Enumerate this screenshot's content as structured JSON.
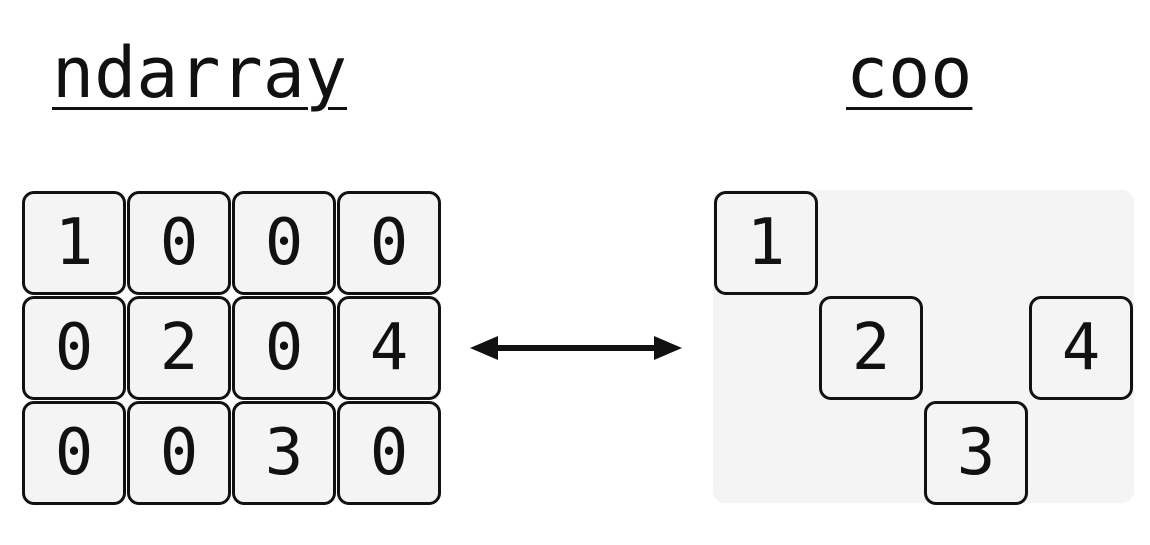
{
  "ndarray": {
    "title": "ndarray",
    "rows": [
      [
        "1",
        "0",
        "0",
        "0"
      ],
      [
        "0",
        "2",
        "0",
        "4"
      ],
      [
        "0",
        "0",
        "3",
        "0"
      ]
    ]
  },
  "coo": {
    "title": "coo",
    "entries": [
      {
        "row": 0,
        "col": 0,
        "value": "1"
      },
      {
        "row": 1,
        "col": 1,
        "value": "2"
      },
      {
        "row": 1,
        "col": 3,
        "value": "4"
      },
      {
        "row": 2,
        "col": 2,
        "value": "3"
      }
    ]
  }
}
